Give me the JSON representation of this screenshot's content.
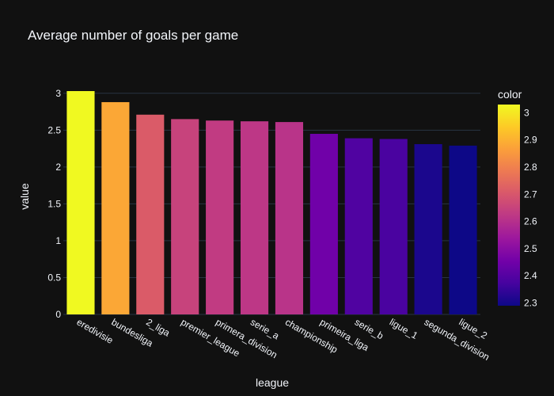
{
  "chart_data": {
    "type": "bar",
    "title": "Average number of goals per game",
    "xlabel": "league",
    "ylabel": "value",
    "categories": [
      "eredivisie",
      "bundesliga",
      "2_liga",
      "premier_league",
      "primera_division",
      "serie_a",
      "championship",
      "primeira_liga",
      "serie_b",
      "ligue_1",
      "segunda_division",
      "ligue_2"
    ],
    "values": [
      3.03,
      2.88,
      2.71,
      2.65,
      2.63,
      2.62,
      2.61,
      2.45,
      2.39,
      2.38,
      2.31,
      2.29
    ],
    "ylim": [
      0,
      3.03
    ],
    "yticks": [
      "0",
      "0.5",
      "1",
      "1.5",
      "2",
      "2.5",
      "3"
    ],
    "grid": true,
    "colorbar": {
      "title": "color",
      "ticks": [
        "2.3",
        "2.4",
        "2.5",
        "2.6",
        "2.7",
        "2.8",
        "2.9",
        "3"
      ],
      "range": [
        2.29,
        3.03
      ]
    },
    "colors": {
      "background": "#111111",
      "grid": "#283442",
      "text": "#f2f5fa",
      "scale": [
        "#0d0887",
        "#46039f",
        "#7201a8",
        "#9c179e",
        "#bd3786",
        "#d8576b",
        "#ed7953",
        "#fb9f3a",
        "#fdca26",
        "#f0f921"
      ]
    }
  }
}
